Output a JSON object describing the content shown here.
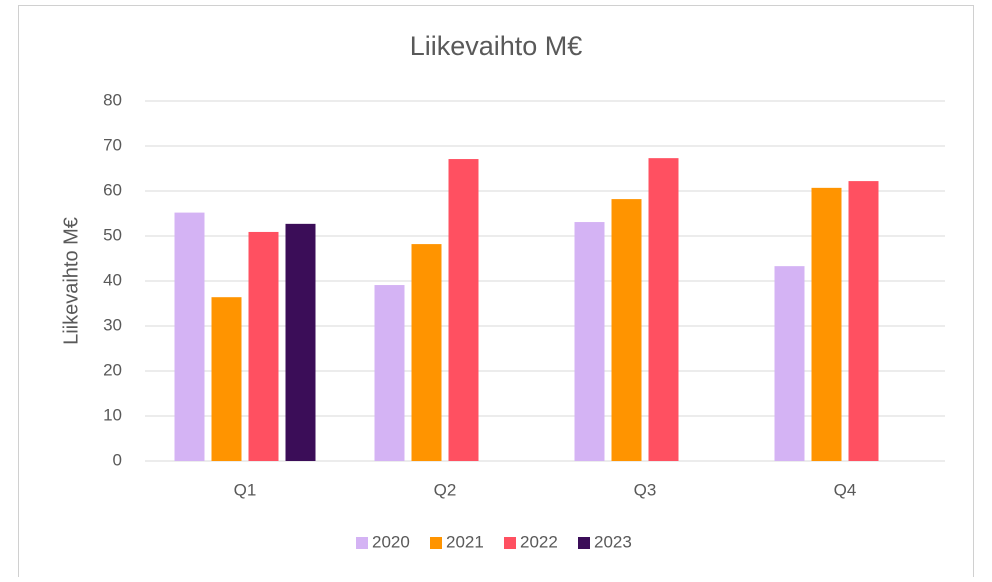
{
  "chart_data": {
    "type": "bar",
    "title": "Liikevaihto M€",
    "y_label": "Liikevaihto M€",
    "categories": [
      "Q1",
      "Q2",
      "Q3",
      "Q4"
    ],
    "series": [
      {
        "name": "2020",
        "color": "#d4b3f4",
        "values": [
          55.2,
          39.1,
          53.1,
          43.3
        ]
      },
      {
        "name": "2021",
        "color": "#ff9400",
        "values": [
          36.4,
          48.2,
          58.2,
          60.7
        ]
      },
      {
        "name": "2022",
        "color": "#ff5061",
        "values": [
          50.9,
          67.1,
          67.3,
          62.2
        ]
      },
      {
        "name": "2023",
        "color": "#3b0d58",
        "values": [
          52.7,
          null,
          null,
          null
        ]
      }
    ],
    "ylim": [
      0,
      80
    ],
    "yticks": [
      0,
      10,
      20,
      30,
      40,
      50,
      60,
      70,
      80
    ],
    "grid": true,
    "legend": "bottom"
  }
}
